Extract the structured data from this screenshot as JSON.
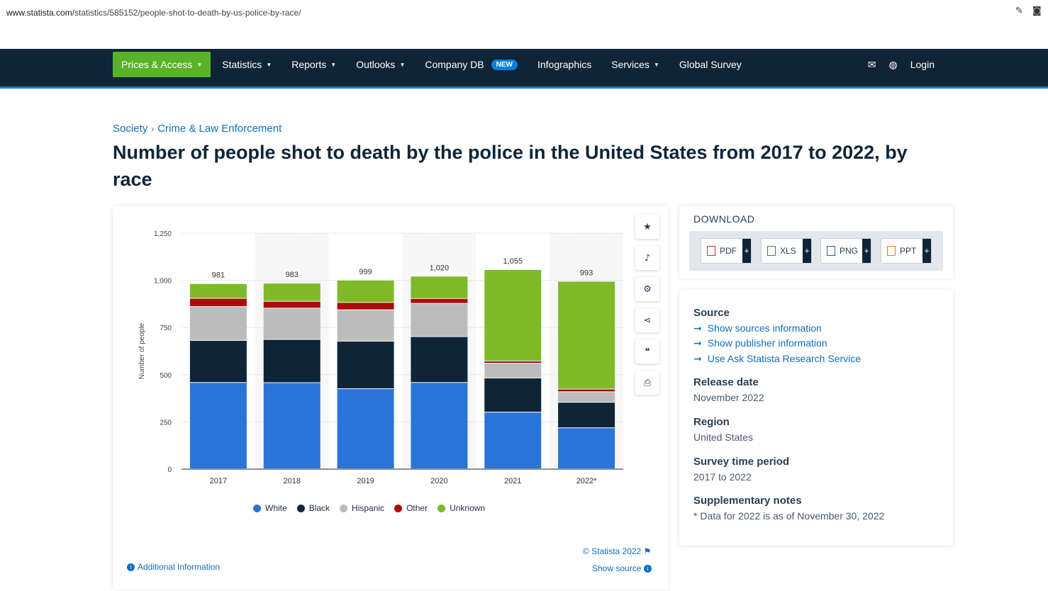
{
  "browser": {
    "url_host": "www.statista.com",
    "url_path": "/statistics/585152/people-shot-to-death-by-us-police-by-race/"
  },
  "nav": {
    "items": [
      {
        "label": "Prices & Access",
        "caret": true
      },
      {
        "label": "Statistics",
        "caret": true
      },
      {
        "label": "Reports",
        "caret": true
      },
      {
        "label": "Outlooks",
        "caret": true
      },
      {
        "label": "Company DB",
        "badge": "NEW"
      },
      {
        "label": "Infographics"
      },
      {
        "label": "Services",
        "caret": true
      },
      {
        "label": "Global Survey"
      }
    ],
    "login": "Login"
  },
  "breadcrumb": [
    "Society",
    "Crime & Law Enforcement"
  ],
  "title": "Number of people shot to death by the police in the United States from 2017 to 2022, by race",
  "chart_data": {
    "type": "bar",
    "stacked": true,
    "title": "",
    "ylabel": "Number of people",
    "xlabel": "",
    "ylim": [
      0,
      1250
    ],
    "yticks": [
      0,
      250,
      500,
      750,
      1000,
      1250
    ],
    "ytick_labels": [
      "0",
      "250",
      "500",
      "750",
      "1,000",
      "1,250"
    ],
    "categories": [
      "2017",
      "2018",
      "2019",
      "2020",
      "2021",
      "2022*"
    ],
    "totals": [
      981,
      983,
      999,
      1020,
      1055,
      993
    ],
    "total_labels": [
      "981",
      "983",
      "999",
      "1,020",
      "1,055",
      "993"
    ],
    "series": [
      {
        "name": "White",
        "color": "#2a74d9",
        "values": [
          457,
          456,
          424,
          457,
          300,
          217
        ]
      },
      {
        "name": "Black",
        "color": "#0f2537",
        "values": [
          223,
          229,
          252,
          243,
          181,
          135
        ]
      },
      {
        "name": "Hispanic",
        "color": "#bcbcbc",
        "values": [
          179,
          166,
          166,
          176,
          78,
          56
        ]
      },
      {
        "name": "Other",
        "color": "#a80c0c",
        "values": [
          44,
          36,
          39,
          26,
          12,
          14
        ]
      },
      {
        "name": "Unknown",
        "color": "#7eba27",
        "values": [
          78,
          96,
          118,
          118,
          484,
          571
        ]
      }
    ]
  },
  "chart_footer": {
    "copyright": "© Statista 2022",
    "show_source": "Show source",
    "additional_info": "Additional Information"
  },
  "download": {
    "title": "DOWNLOAD",
    "buttons": [
      "PDF",
      "XLS",
      "PNG",
      "PPT"
    ]
  },
  "meta": {
    "source_heading": "Source",
    "source_links": [
      "Show sources information",
      "Show publisher information",
      "Use Ask Statista Research Service"
    ],
    "release_heading": "Release date",
    "release_value": "November 2022",
    "region_heading": "Region",
    "region_value": "United States",
    "period_heading": "Survey time period",
    "period_value": "2017 to 2022",
    "notes_heading": "Supplementary notes",
    "notes_value": "* Data for 2022 is as of November 30, 2022"
  }
}
